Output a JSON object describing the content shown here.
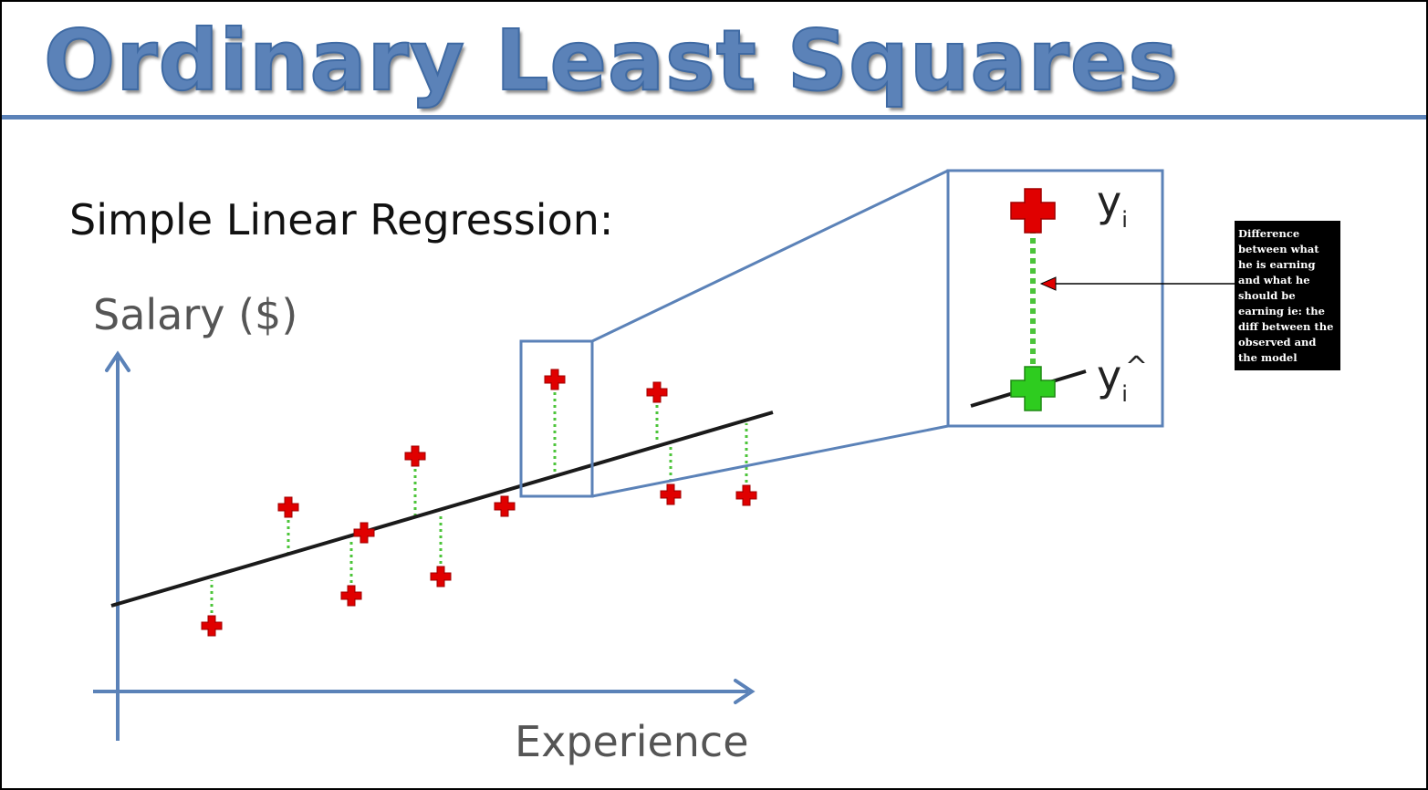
{
  "title": "Ordinary Least Squares",
  "subtitle": "Simple Linear Regression:",
  "axes": {
    "y_label": "Salary ($)",
    "x_label": "Experience"
  },
  "zoom_labels": {
    "observed_symbol": "y",
    "observed_subscript": "i",
    "model_symbol": "y",
    "model_hat": "^",
    "model_subscript": "i"
  },
  "note": {
    "text": "Difference between what he is earning and what he should be earning ie: the diff between the observed and the model"
  },
  "colors": {
    "title": "#5b82b8",
    "axis": "#5b82b8",
    "observed_point": "#e00000",
    "model_point": "#2ecc1f",
    "residual": "#4cc43a",
    "regression_line": "#000000",
    "note_background": "#000000"
  }
}
